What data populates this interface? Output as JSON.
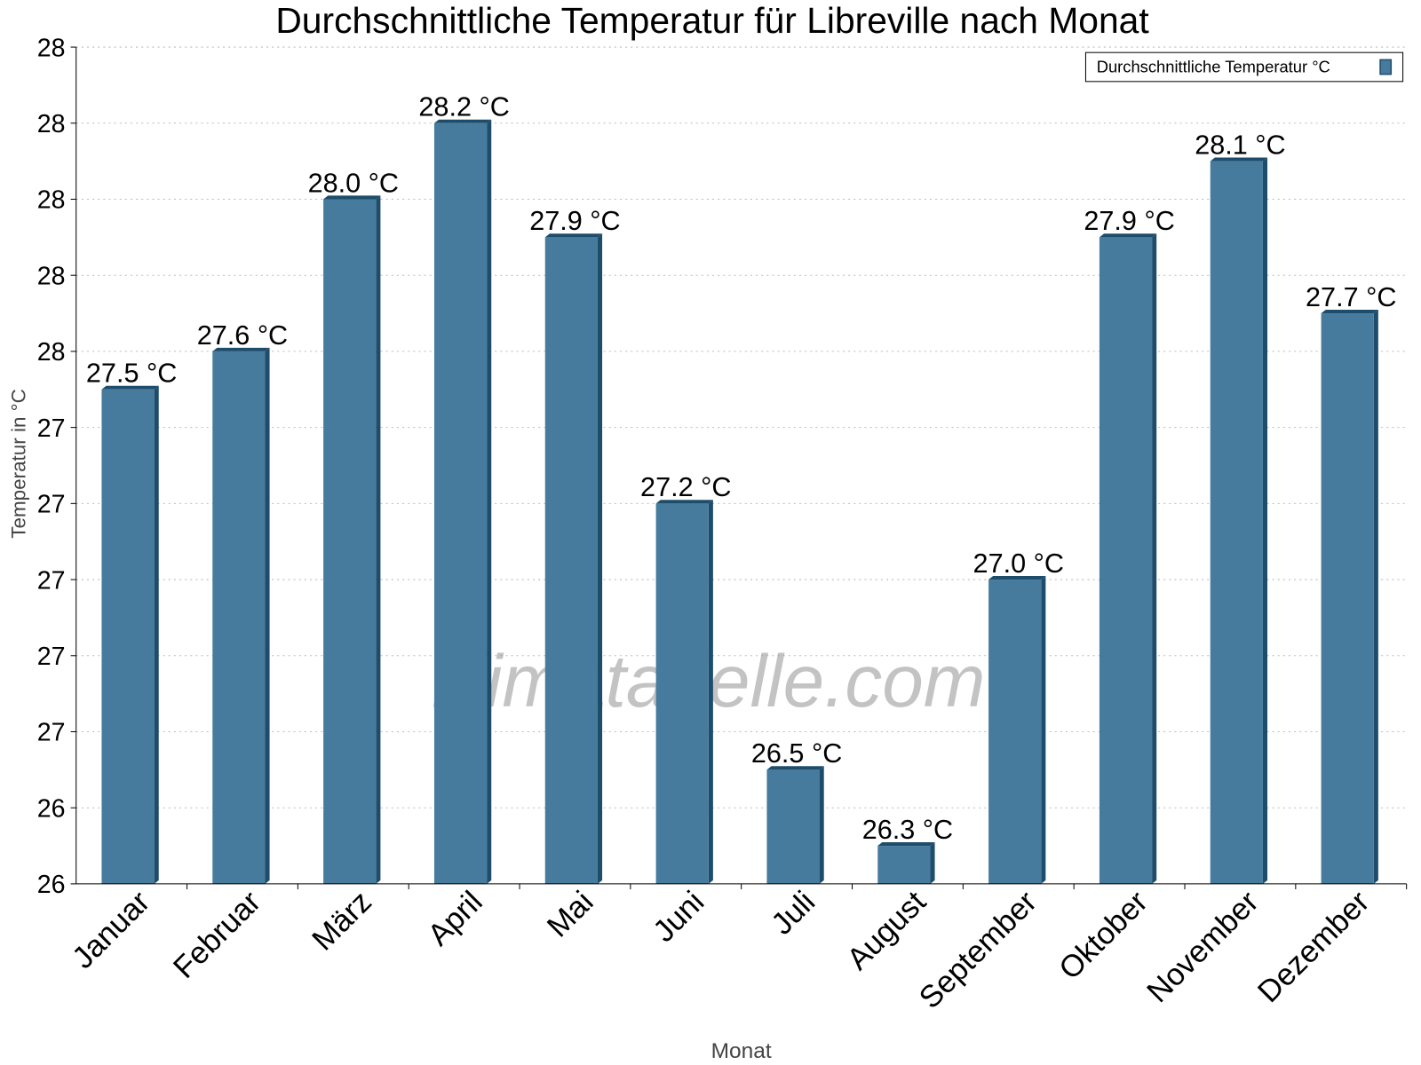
{
  "chart_data": {
    "type": "bar",
    "title": "Durchschnittliche Temperatur für Libreville nach Monat",
    "xlabel": "Monat",
    "ylabel": "Temperatur in °C",
    "categories": [
      "Januar",
      "Februar",
      "März",
      "April",
      "Mai",
      "Juni",
      "Juli",
      "August",
      "September",
      "Oktober",
      "November",
      "Dezember"
    ],
    "series": [
      {
        "name": "Durchschnittliche Temperatur °C",
        "values": [
          27.5,
          27.6,
          28.0,
          28.2,
          27.9,
          27.2,
          26.5,
          26.3,
          27.0,
          27.9,
          28.1,
          27.7
        ]
      }
    ],
    "data_labels": [
      "27.5 °C",
      "27.6 °C",
      "28.0 °C",
      "28.2 °C",
      "27.9 °C",
      "27.2 °C",
      "26.5 °C",
      "26.3 °C",
      "27.0 °C",
      "27.9 °C",
      "28.1 °C",
      "27.7 °C"
    ],
    "ylim": [
      26.2,
      28.4
    ],
    "yticks": [
      26.2,
      26.4,
      26.6,
      26.8,
      27.0,
      27.2,
      27.4,
      27.6,
      27.8,
      28.0,
      28.2,
      28.4
    ],
    "ytick_labels": [
      "26",
      "26",
      "27",
      "27",
      "27",
      "27",
      "27",
      "28",
      "28",
      "28",
      "28",
      "28"
    ],
    "grid": true,
    "legend_position": "top-right",
    "bar_color": "#467b9d",
    "bar_shade_color": "#1e4d6c",
    "watermark": "klimatabelle.com"
  }
}
